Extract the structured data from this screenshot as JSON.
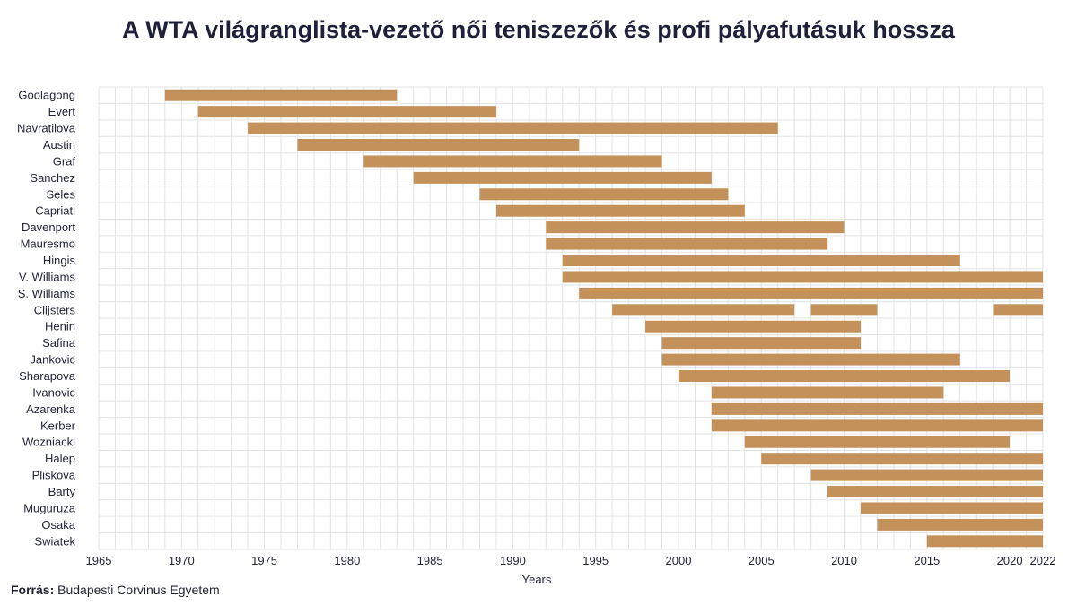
{
  "chart_data": {
    "type": "bar",
    "orientation": "horizontal-range",
    "title": "A WTA világranglista-vezető női teniszezők és profi pályafutásuk hossza",
    "xlabel": "Years",
    "ylabel": "",
    "xlim": [
      1965,
      2022
    ],
    "xticks": [
      1965,
      1970,
      1975,
      1980,
      1985,
      1990,
      1995,
      2000,
      2005,
      2010,
      2015,
      2020,
      2022
    ],
    "grid": true,
    "bar_color": "#c4915a",
    "players": [
      {
        "name": "Goolagong",
        "spans": [
          [
            1969,
            1983
          ]
        ]
      },
      {
        "name": "Evert",
        "spans": [
          [
            1971,
            1989
          ]
        ]
      },
      {
        "name": "Navratilova",
        "spans": [
          [
            1974,
            2006
          ]
        ]
      },
      {
        "name": "Austin",
        "spans": [
          [
            1977,
            1994
          ]
        ]
      },
      {
        "name": "Graf",
        "spans": [
          [
            1981,
            1999
          ]
        ]
      },
      {
        "name": "Sanchez",
        "spans": [
          [
            1984,
            2002
          ]
        ]
      },
      {
        "name": "Seles",
        "spans": [
          [
            1988,
            2003
          ]
        ]
      },
      {
        "name": "Capriati",
        "spans": [
          [
            1989,
            2004
          ]
        ]
      },
      {
        "name": "Davenport",
        "spans": [
          [
            1992,
            2010
          ]
        ]
      },
      {
        "name": "Mauresmo",
        "spans": [
          [
            1992,
            2009
          ]
        ]
      },
      {
        "name": "Hingis",
        "spans": [
          [
            1993,
            2017
          ]
        ]
      },
      {
        "name": "V. Williams",
        "spans": [
          [
            1993,
            2022
          ]
        ]
      },
      {
        "name": "S. Williams",
        "spans": [
          [
            1994,
            2022
          ]
        ]
      },
      {
        "name": "Clijsters",
        "spans": [
          [
            1996,
            2007
          ],
          [
            2008,
            2012
          ],
          [
            2019,
            2022
          ]
        ]
      },
      {
        "name": "Henin",
        "spans": [
          [
            1998,
            2011
          ]
        ]
      },
      {
        "name": "Safina",
        "spans": [
          [
            1999,
            2011
          ]
        ]
      },
      {
        "name": "Jankovic",
        "spans": [
          [
            1999,
            2017
          ]
        ]
      },
      {
        "name": "Sharapova",
        "spans": [
          [
            2000,
            2020
          ]
        ]
      },
      {
        "name": "Ivanovic",
        "spans": [
          [
            2002,
            2016
          ]
        ]
      },
      {
        "name": "Azarenka",
        "spans": [
          [
            2002,
            2022
          ]
        ]
      },
      {
        "name": "Kerber",
        "spans": [
          [
            2002,
            2022
          ]
        ]
      },
      {
        "name": "Wozniacki",
        "spans": [
          [
            2004,
            2020
          ]
        ]
      },
      {
        "name": "Halep",
        "spans": [
          [
            2005,
            2022
          ]
        ]
      },
      {
        "name": "Pliskova",
        "spans": [
          [
            2008,
            2022
          ]
        ]
      },
      {
        "name": "Barty",
        "spans": [
          [
            2009,
            2022
          ]
        ]
      },
      {
        "name": "Muguruza",
        "spans": [
          [
            2011,
            2022
          ]
        ]
      },
      {
        "name": "Osaka",
        "spans": [
          [
            2012,
            2022
          ]
        ]
      },
      {
        "name": "Swiatek",
        "spans": [
          [
            2015,
            2022
          ]
        ]
      }
    ]
  },
  "footer": {
    "source_label": "Forrás:",
    "source_text": "Budapesti Corvinus Egyetem"
  }
}
